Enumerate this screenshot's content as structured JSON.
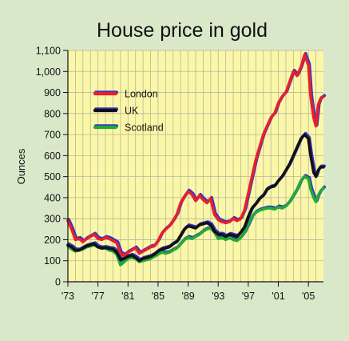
{
  "chart_data": {
    "type": "line",
    "title": "House price in gold",
    "ylabel": "Ounces",
    "xlabel": "",
    "x_tick_labels": [
      "'73",
      "'77",
      "'81",
      "'85",
      "'89",
      "'93",
      "'97",
      "'01",
      "'05"
    ],
    "x_ticks": [
      1973,
      1977,
      1981,
      1985,
      1989,
      1993,
      1997,
      2001,
      2005
    ],
    "y_tick_labels": [
      "0",
      "100",
      "200",
      "300",
      "400",
      "500",
      "600",
      "700",
      "800",
      "900",
      "1,000",
      "1,100"
    ],
    "y_ticks": [
      0,
      100,
      200,
      300,
      400,
      500,
      600,
      700,
      800,
      900,
      1000,
      1100
    ],
    "xlim": [
      1973,
      2007
    ],
    "ylim": [
      0,
      1100
    ],
    "grid": true,
    "legend_position": "top-left",
    "colors": {
      "background": "#d9e8c9",
      "plot_area": "#fbf7a8",
      "grid": "#b9b59a",
      "shadow": "#3333cc"
    },
    "series": [
      {
        "name": "London",
        "color": "#e8202a",
        "points": [
          [
            1973.0,
            290
          ],
          [
            1973.5,
            250
          ],
          [
            1974.0,
            200
          ],
          [
            1974.5,
            205
          ],
          [
            1975.0,
            190
          ],
          [
            1975.5,
            205
          ],
          [
            1976.0,
            215
          ],
          [
            1976.5,
            225
          ],
          [
            1977.0,
            205
          ],
          [
            1977.5,
            200
          ],
          [
            1978.0,
            210
          ],
          [
            1978.5,
            205
          ],
          [
            1979.0,
            195
          ],
          [
            1979.5,
            185
          ],
          [
            1980.0,
            135
          ],
          [
            1980.5,
            125
          ],
          [
            1981.0,
            140
          ],
          [
            1981.5,
            150
          ],
          [
            1982.0,
            160
          ],
          [
            1982.5,
            135
          ],
          [
            1983.0,
            145
          ],
          [
            1983.5,
            155
          ],
          [
            1984.0,
            165
          ],
          [
            1984.5,
            170
          ],
          [
            1985.0,
            195
          ],
          [
            1985.5,
            230
          ],
          [
            1986.0,
            250
          ],
          [
            1986.5,
            265
          ],
          [
            1987.0,
            290
          ],
          [
            1987.5,
            320
          ],
          [
            1988.0,
            375
          ],
          [
            1988.5,
            405
          ],
          [
            1989.0,
            430
          ],
          [
            1989.5,
            415
          ],
          [
            1990.0,
            385
          ],
          [
            1990.5,
            410
          ],
          [
            1991.0,
            390
          ],
          [
            1991.5,
            375
          ],
          [
            1992.0,
            395
          ],
          [
            1992.5,
            320
          ],
          [
            1993.0,
            295
          ],
          [
            1993.5,
            285
          ],
          [
            1994.0,
            280
          ],
          [
            1994.5,
            285
          ],
          [
            1995.0,
            300
          ],
          [
            1995.5,
            290
          ],
          [
            1996.0,
            300
          ],
          [
            1996.5,
            340
          ],
          [
            1997.0,
            420
          ],
          [
            1997.5,
            500
          ],
          [
            1998.0,
            580
          ],
          [
            1998.5,
            640
          ],
          [
            1999.0,
            700
          ],
          [
            1999.5,
            740
          ],
          [
            2000.0,
            780
          ],
          [
            2000.5,
            800
          ],
          [
            2001.0,
            850
          ],
          [
            2001.5,
            880
          ],
          [
            2002.0,
            900
          ],
          [
            2002.5,
            950
          ],
          [
            2003.0,
            1000
          ],
          [
            2003.5,
            980
          ],
          [
            2004.0,
            1020
          ],
          [
            2004.5,
            1080
          ],
          [
            2005.0,
            1030
          ],
          [
            2005.3,
            880
          ],
          [
            2005.7,
            780
          ],
          [
            2006.0,
            740
          ],
          [
            2006.3,
            840
          ],
          [
            2006.6,
            870
          ],
          [
            2007.0,
            880
          ]
        ]
      },
      {
        "name": "UK",
        "color": "#111111",
        "points": [
          [
            1973.0,
            175
          ],
          [
            1973.5,
            165
          ],
          [
            1974.0,
            150
          ],
          [
            1974.5,
            150
          ],
          [
            1975.0,
            160
          ],
          [
            1975.5,
            170
          ],
          [
            1976.0,
            175
          ],
          [
            1976.5,
            180
          ],
          [
            1977.0,
            165
          ],
          [
            1977.5,
            160
          ],
          [
            1978.0,
            162
          ],
          [
            1978.5,
            158
          ],
          [
            1979.0,
            155
          ],
          [
            1979.5,
            140
          ],
          [
            1980.0,
            105
          ],
          [
            1980.5,
            110
          ],
          [
            1981.0,
            120
          ],
          [
            1981.5,
            125
          ],
          [
            1982.0,
            115
          ],
          [
            1982.5,
            100
          ],
          [
            1983.0,
            110
          ],
          [
            1983.5,
            115
          ],
          [
            1984.0,
            120
          ],
          [
            1984.5,
            130
          ],
          [
            1985.0,
            145
          ],
          [
            1985.5,
            155
          ],
          [
            1986.0,
            160
          ],
          [
            1986.5,
            165
          ],
          [
            1987.0,
            180
          ],
          [
            1987.5,
            190
          ],
          [
            1988.0,
            220
          ],
          [
            1988.5,
            250
          ],
          [
            1989.0,
            265
          ],
          [
            1989.5,
            260
          ],
          [
            1990.0,
            255
          ],
          [
            1990.5,
            270
          ],
          [
            1991.0,
            275
          ],
          [
            1991.5,
            280
          ],
          [
            1992.0,
            270
          ],
          [
            1992.5,
            240
          ],
          [
            1993.0,
            225
          ],
          [
            1993.5,
            225
          ],
          [
            1994.0,
            215
          ],
          [
            1994.5,
            225
          ],
          [
            1995.0,
            220
          ],
          [
            1995.5,
            215
          ],
          [
            1996.0,
            235
          ],
          [
            1996.5,
            260
          ],
          [
            1997.0,
            310
          ],
          [
            1997.5,
            350
          ],
          [
            1998.0,
            370
          ],
          [
            1998.5,
            395
          ],
          [
            1999.0,
            410
          ],
          [
            1999.5,
            440
          ],
          [
            2000.0,
            450
          ],
          [
            2000.5,
            455
          ],
          [
            2001.0,
            480
          ],
          [
            2001.5,
            500
          ],
          [
            2002.0,
            530
          ],
          [
            2002.5,
            560
          ],
          [
            2003.0,
            600
          ],
          [
            2003.5,
            640
          ],
          [
            2004.0,
            680
          ],
          [
            2004.5,
            700
          ],
          [
            2005.0,
            680
          ],
          [
            2005.3,
            600
          ],
          [
            2005.7,
            520
          ],
          [
            2006.0,
            500
          ],
          [
            2006.3,
            530
          ],
          [
            2006.6,
            545
          ],
          [
            2007.0,
            545
          ]
        ]
      },
      {
        "name": "Scotland",
        "color": "#22aa33",
        "points": [
          [
            1973.0,
            170
          ],
          [
            1973.5,
            155
          ],
          [
            1974.0,
            145
          ],
          [
            1974.5,
            150
          ],
          [
            1975.0,
            155
          ],
          [
            1975.5,
            165
          ],
          [
            1976.0,
            170
          ],
          [
            1976.5,
            175
          ],
          [
            1977.0,
            165
          ],
          [
            1977.5,
            158
          ],
          [
            1978.0,
            160
          ],
          [
            1978.5,
            150
          ],
          [
            1979.0,
            145
          ],
          [
            1979.5,
            130
          ],
          [
            1980.0,
            80
          ],
          [
            1980.5,
            95
          ],
          [
            1981.0,
            110
          ],
          [
            1981.5,
            115
          ],
          [
            1982.0,
            110
          ],
          [
            1982.5,
            95
          ],
          [
            1983.0,
            100
          ],
          [
            1983.5,
            105
          ],
          [
            1984.0,
            110
          ],
          [
            1984.5,
            120
          ],
          [
            1985.0,
            130
          ],
          [
            1985.5,
            140
          ],
          [
            1986.0,
            135
          ],
          [
            1986.5,
            140
          ],
          [
            1987.0,
            150
          ],
          [
            1987.5,
            160
          ],
          [
            1988.0,
            180
          ],
          [
            1988.5,
            200
          ],
          [
            1989.0,
            210
          ],
          [
            1989.5,
            205
          ],
          [
            1990.0,
            215
          ],
          [
            1990.5,
            225
          ],
          [
            1991.0,
            240
          ],
          [
            1991.5,
            250
          ],
          [
            1992.0,
            255
          ],
          [
            1992.5,
            235
          ],
          [
            1993.0,
            205
          ],
          [
            1993.5,
            210
          ],
          [
            1994.0,
            200
          ],
          [
            1994.5,
            210
          ],
          [
            1995.0,
            200
          ],
          [
            1995.5,
            195
          ],
          [
            1996.0,
            210
          ],
          [
            1996.5,
            235
          ],
          [
            1997.0,
            270
          ],
          [
            1997.5,
            310
          ],
          [
            1998.0,
            330
          ],
          [
            1998.5,
            340
          ],
          [
            1999.0,
            345
          ],
          [
            1999.5,
            350
          ],
          [
            2000.0,
            350
          ],
          [
            2000.5,
            345
          ],
          [
            2001.0,
            355
          ],
          [
            2001.5,
            350
          ],
          [
            2002.0,
            360
          ],
          [
            2002.5,
            380
          ],
          [
            2003.0,
            410
          ],
          [
            2003.5,
            440
          ],
          [
            2004.0,
            480
          ],
          [
            2004.5,
            500
          ],
          [
            2005.0,
            490
          ],
          [
            2005.3,
            440
          ],
          [
            2005.7,
            400
          ],
          [
            2006.0,
            380
          ],
          [
            2006.3,
            410
          ],
          [
            2006.6,
            430
          ],
          [
            2007.0,
            445
          ]
        ]
      }
    ]
  }
}
